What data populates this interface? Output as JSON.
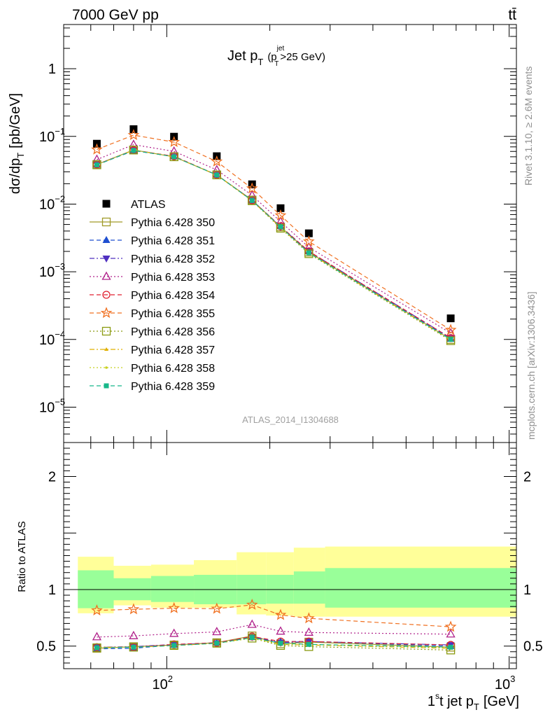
{
  "header": {
    "left": "7000 GeV pp",
    "right": "tt̄"
  },
  "side_labels": {
    "rivet": "Rivet 3.1.10, ≥ 2.6M events",
    "mcplots": "mcplots.cern.ch [arXiv:1306.3436]"
  },
  "chart_data": [
    {
      "type": "line",
      "title_main": "Jet p",
      "title_sub": "T",
      "title_cut_p": "(p",
      "title_cut_sup": "jet",
      "title_cut_sub": "T",
      "title_cut_rest": ">25 GeV)",
      "ylabel": "dσ/dp_T [pb/GeV]",
      "analysis_tag": "ATLAS_2014_I1304688",
      "xlog": true,
      "ylog": true,
      "xlim": [
        50,
        1050
      ],
      "ylim": [
        3e-06,
        4.5
      ],
      "y_tick_labels": [
        "1",
        "10^-1",
        "10^-2",
        "10^-3",
        "10^-4",
        "10^-5"
      ],
      "x": [
        62.5,
        80,
        105,
        140,
        177.5,
        215,
        260,
        675
      ],
      "series": [
        {
          "name": "ATLAS",
          "color": "#000000",
          "marker": "square-filled",
          "dash": "none",
          "values": [
            0.078,
            0.128,
            0.099,
            0.051,
            0.0196,
            0.0087,
            0.0037,
            0.000205
          ]
        },
        {
          "name": "Pythia 6.428 350",
          "color": "#a09a28",
          "marker": "square-open",
          "dash": "solid",
          "values": [
            0.0385,
            0.063,
            0.05,
            0.027,
            0.0115,
            0.0046,
            0.00195,
            0.0001
          ]
        },
        {
          "name": "Pythia 6.428 351",
          "color": "#1f4fd0",
          "marker": "triangle-up-filled",
          "dash": "dashed",
          "values": [
            0.038,
            0.0615,
            0.0505,
            0.027,
            0.0113,
            0.0047,
            0.002,
            0.000102
          ]
        },
        {
          "name": "Pythia 6.428 352",
          "color": "#5030c0",
          "marker": "triangle-down-filled",
          "dash": "dashdot",
          "values": [
            0.0385,
            0.063,
            0.0505,
            0.0268,
            0.0114,
            0.0046,
            0.002,
            0.000105
          ]
        },
        {
          "name": "Pythia 6.428 353",
          "color": "#b0208a",
          "marker": "triangle-up-open",
          "dash": "dotted",
          "values": [
            0.0455,
            0.0755,
            0.06,
            0.032,
            0.0135,
            0.0055,
            0.0023,
            0.000124
          ]
        },
        {
          "name": "Pythia 6.428 354",
          "color": "#e02030",
          "marker": "circle-open",
          "dash": "dashed",
          "values": [
            0.0385,
            0.0625,
            0.051,
            0.027,
            0.0114,
            0.0047,
            0.002,
            0.000105
          ]
        },
        {
          "name": "Pythia 6.428 355",
          "color": "#f07020",
          "marker": "star-open",
          "dash": "dashed",
          "values": [
            0.064,
            0.1045,
            0.0825,
            0.0425,
            0.017,
            0.0068,
            0.0028,
            0.000138
          ]
        },
        {
          "name": "Pythia 6.428 356",
          "color": "#8a9a10",
          "marker": "square-open",
          "dash": "dotted",
          "values": [
            0.038,
            0.063,
            0.05,
            0.027,
            0.0112,
            0.0044,
            0.00185,
            9.6e-05
          ]
        },
        {
          "name": "Pythia 6.428 357",
          "color": "#e0b000",
          "marker": "small-triangle",
          "dash": "dashdot",
          "values": [
            0.038,
            0.063,
            0.05,
            0.027,
            0.0112,
            0.0045,
            0.0019,
            9.8e-05
          ]
        },
        {
          "name": "Pythia 6.428 358",
          "color": "#c8d020",
          "marker": "dot",
          "dash": "dotted",
          "values": [
            0.038,
            0.0625,
            0.05,
            0.0268,
            0.0112,
            0.0045,
            0.0019,
            9.9e-05
          ]
        },
        {
          "name": "Pythia 6.428 359",
          "color": "#18b88a",
          "marker": "square-filled-small",
          "dash": "dashed",
          "values": [
            0.038,
            0.062,
            0.05,
            0.027,
            0.0113,
            0.0046,
            0.0019,
            0.0001
          ]
        }
      ]
    },
    {
      "type": "line",
      "ylabel": "Ratio to ATLAS",
      "xlabel": "1st jet p_T [GeV]",
      "xlog": true,
      "xlim": [
        50,
        1050
      ],
      "ylim": [
        0.3,
        2.3
      ],
      "y_ticks": [
        0.5,
        1,
        2
      ],
      "y_tick_labels": [
        "0.5",
        "1",
        "2"
      ],
      "x_tick_labels": [
        "10^2",
        "10^3"
      ],
      "x_edges": [
        55,
        70,
        90,
        120,
        160,
        195,
        235,
        290,
        1050
      ],
      "band_green_lo": [
        0.835,
        0.905,
        0.89,
        0.87,
        0.87,
        0.875,
        0.875,
        0.84
      ],
      "band_green_hi": [
        1.17,
        1.1,
        1.12,
        1.13,
        1.13,
        1.13,
        1.16,
        1.19
      ],
      "band_yellow_lo": [
        0.79,
        0.86,
        0.84,
        0.84,
        0.78,
        0.77,
        0.76,
        0.76
      ],
      "band_yellow_hi": [
        1.29,
        1.21,
        1.22,
        1.26,
        1.33,
        1.33,
        1.37,
        1.38
      ],
      "x": [
        62.5,
        80,
        105,
        140,
        177.5,
        215,
        260,
        675
      ],
      "series": [
        {
          "name": "Pythia 6.428 350",
          "values": [
            0.48,
            0.495,
            0.51,
            0.53,
            0.59,
            0.52,
            0.535,
            0.49
          ]
        },
        {
          "name": "Pythia 6.428 351",
          "values": [
            0.475,
            0.48,
            0.51,
            0.53,
            0.58,
            0.54,
            0.54,
            0.5
          ]
        },
        {
          "name": "Pythia 6.428 352",
          "values": [
            0.49,
            0.495,
            0.515,
            0.525,
            0.58,
            0.53,
            0.54,
            0.51
          ]
        },
        {
          "name": "Pythia 6.428 353",
          "values": [
            0.58,
            0.59,
            0.61,
            0.625,
            0.69,
            0.63,
            0.62,
            0.605
          ]
        },
        {
          "name": "Pythia 6.428 354",
          "values": [
            0.49,
            0.49,
            0.515,
            0.53,
            0.585,
            0.54,
            0.54,
            0.51
          ]
        },
        {
          "name": "Pythia 6.428 355",
          "values": [
            0.815,
            0.825,
            0.835,
            0.83,
            0.865,
            0.775,
            0.745,
            0.67
          ]
        },
        {
          "name": "Pythia 6.428 356",
          "values": [
            0.485,
            0.49,
            0.505,
            0.525,
            0.57,
            0.505,
            0.495,
            0.465
          ]
        },
        {
          "name": "Pythia 6.428 357",
          "values": [
            0.49,
            0.49,
            0.505,
            0.525,
            0.575,
            0.515,
            0.51,
            0.48
          ]
        },
        {
          "name": "Pythia 6.428 358",
          "values": [
            0.485,
            0.49,
            0.505,
            0.525,
            0.57,
            0.515,
            0.515,
            0.485
          ]
        },
        {
          "name": "Pythia 6.428 359",
          "values": [
            0.485,
            0.49,
            0.505,
            0.525,
            0.575,
            0.525,
            0.515,
            0.49
          ]
        }
      ]
    }
  ]
}
